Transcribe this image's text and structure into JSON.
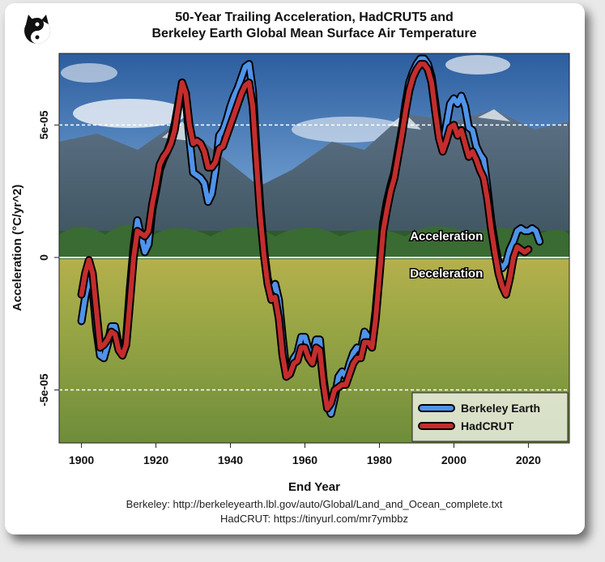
{
  "logo": {
    "icon": "yin-yang-cat-logo"
  },
  "chart_data": {
    "type": "line",
    "title": "50-Year Trailing Acceleration, HadCRUT5 and\nBerkeley Earth Global Mean Surface Air Temperature",
    "xlabel": "End Year",
    "ylabel": "Acceleration (°C/yr^2)",
    "xlim": [
      1894,
      2031
    ],
    "ylim": [
      -7e-05,
      7.7e-05
    ],
    "xticks": [
      1900,
      1920,
      1940,
      1960,
      1980,
      2000,
      2020
    ],
    "yticks": [
      {
        "value": 5e-05,
        "label": "5e-05"
      },
      {
        "value": 0,
        "label": "0"
      },
      {
        "value": -5e-05,
        "label": "-5e-05"
      }
    ],
    "reference_lines": [
      5e-05,
      -5e-05
    ],
    "zero_line": 0,
    "annotations": [
      {
        "text": "Acceleration",
        "x": 1998,
        "y": 6.5e-06
      },
      {
        "text": "Deceleration",
        "x": 1998,
        "y": -7.5e-06
      }
    ],
    "legend_position": "bottom-right",
    "series": [
      {
        "name": "Berkeley Earth",
        "color": "#4f93ea",
        "x": [
          1900,
          1901,
          1902,
          1903,
          1904,
          1905,
          1906,
          1907,
          1908,
          1909,
          1910,
          1911,
          1912,
          1913,
          1914,
          1915,
          1916,
          1917,
          1918,
          1919,
          1920,
          1921,
          1922,
          1923,
          1924,
          1925,
          1926,
          1927,
          1928,
          1929,
          1930,
          1931,
          1932,
          1933,
          1934,
          1935,
          1936,
          1937,
          1938,
          1939,
          1940,
          1941,
          1942,
          1943,
          1944,
          1945,
          1946,
          1947,
          1948,
          1949,
          1950,
          1951,
          1952,
          1953,
          1954,
          1955,
          1956,
          1957,
          1958,
          1959,
          1960,
          1961,
          1962,
          1963,
          1964,
          1965,
          1966,
          1967,
          1968,
          1969,
          1970,
          1971,
          1972,
          1973,
          1974,
          1975,
          1976,
          1977,
          1978,
          1979,
          1980,
          1981,
          1982,
          1983,
          1984,
          1985,
          1986,
          1987,
          1988,
          1989,
          1990,
          1991,
          1992,
          1993,
          1994,
          1995,
          1996,
          1997,
          1998,
          1999,
          2000,
          2001,
          2002,
          2003,
          2004,
          2005,
          2006,
          2007,
          2008,
          2009,
          2010,
          2011,
          2012,
          2013,
          2014,
          2015,
          2016,
          2017,
          2018,
          2019,
          2020,
          2021,
          2022,
          2023
        ],
        "y": [
          -2.4e-05,
          -1.5e-05,
          -8e-06,
          -1.2e-05,
          -2.7e-05,
          -3.7e-05,
          -3.8e-05,
          -3.3e-05,
          -2.6e-05,
          -2.6e-05,
          -3.3e-05,
          -3.6e-05,
          -3.1e-05,
          -1.2e-05,
          4e-06,
          1.4e-05,
          8e-06,
          2e-06,
          5e-06,
          1.8e-05,
          2.5e-05,
          3.3e-05,
          3.7e-05,
          4e-05,
          4.4e-05,
          5e-05,
          5.8e-05,
          6.6e-05,
          6e-05,
          4.5e-05,
          3.2e-05,
          3.1e-05,
          3e-05,
          2.8e-05,
          2.1e-05,
          2.4e-05,
          3.3e-05,
          4.6e-05,
          4.8e-05,
          5.2e-05,
          5.7e-05,
          6.1e-05,
          6.4e-05,
          6.8e-05,
          7.2e-05,
          7.3e-05,
          6.3e-05,
          4e-05,
          1.9e-05,
          3e-06,
          -8e-06,
          -1.3e-05,
          -1e-05,
          -1.6e-05,
          -3e-05,
          -4.3e-05,
          -4.2e-05,
          -3.8e-05,
          -3.6e-05,
          -3e-05,
          -3e-05,
          -3.5e-05,
          -3.7e-05,
          -3.1e-05,
          -3.1e-05,
          -4.6e-05,
          -5.6e-05,
          -5.9e-05,
          -5.3e-05,
          -4.5e-05,
          -4.3e-05,
          -4.5e-05,
          -4e-05,
          -3.6e-05,
          -3.4e-05,
          -3.5e-05,
          -2.8e-05,
          -3e-05,
          -3.2e-05,
          -2e-05,
          -4e-06,
          1.3e-05,
          2.1e-05,
          2.7e-05,
          3.2e-05,
          4e-05,
          4.8e-05,
          5.8e-05,
          6.6e-05,
          7e-05,
          7.3e-05,
          7.5e-05,
          7.5e-05,
          7.3e-05,
          6.8e-05,
          5.8e-05,
          4.7e-05,
          4.2e-05,
          5e-05,
          5.8e-05,
          6e-05,
          5.8e-05,
          6.1e-05,
          5.7e-05,
          4.9e-05,
          4.8e-05,
          4.2e-05,
          3.9e-05,
          3.7e-05,
          2.6e-05,
          1.4e-05,
          5e-06,
          -2e-06,
          -4e-06,
          -2e-06,
          3e-06,
          6e-06,
          1e-05,
          1.1e-05,
          1e-05,
          1e-05,
          1.1e-05,
          1e-05,
          6e-06
        ]
      },
      {
        "name": "HadCRUT",
        "color": "#c42d2d",
        "x": [
          1900,
          1901,
          1902,
          1903,
          1904,
          1905,
          1906,
          1907,
          1908,
          1909,
          1910,
          1911,
          1912,
          1913,
          1914,
          1915,
          1916,
          1917,
          1918,
          1919,
          1920,
          1921,
          1922,
          1923,
          1924,
          1925,
          1926,
          1927,
          1928,
          1929,
          1930,
          1931,
          1932,
          1933,
          1934,
          1935,
          1936,
          1937,
          1938,
          1939,
          1940,
          1941,
          1942,
          1943,
          1944,
          1945,
          1946,
          1947,
          1948,
          1949,
          1950,
          1951,
          1952,
          1953,
          1954,
          1955,
          1956,
          1957,
          1958,
          1959,
          1960,
          1961,
          1962,
          1963,
          1964,
          1965,
          1966,
          1967,
          1968,
          1969,
          1970,
          1971,
          1972,
          1973,
          1974,
          1975,
          1976,
          1977,
          1978,
          1979,
          1980,
          1981,
          1982,
          1983,
          1984,
          1985,
          1986,
          1987,
          1988,
          1989,
          1990,
          1991,
          1992,
          1993,
          1994,
          1995,
          1996,
          1997,
          1998,
          1999,
          2000,
          2001,
          2002,
          2003,
          2004,
          2005,
          2006,
          2007,
          2008,
          2009,
          2010,
          2011,
          2012,
          2013,
          2014,
          2015,
          2016,
          2017,
          2018,
          2019,
          2020
        ],
        "y": [
          -1.4e-05,
          -6e-06,
          -1e-06,
          -6e-06,
          -2e-05,
          -3.4e-05,
          -3.3e-05,
          -3.1e-05,
          -2.8e-05,
          -2.9e-05,
          -3.5e-05,
          -3.7e-05,
          -3.3e-05,
          -1.7e-05,
          0.0,
          1e-05,
          9e-06,
          8e-06,
          1e-05,
          2e-05,
          2.7e-05,
          3.5e-05,
          3.8e-05,
          4e-05,
          4.3e-05,
          4.8e-05,
          5.7e-05,
          6.6e-05,
          6.2e-05,
          5e-05,
          4.3e-05,
          4.4e-05,
          4.3e-05,
          4e-05,
          3.4e-05,
          3.4e-05,
          3.6e-05,
          4.1e-05,
          4.2e-05,
          4.6e-05,
          5e-05,
          5.4e-05,
          5.8e-05,
          6.2e-05,
          6.5e-05,
          6.6e-05,
          5.7e-05,
          3.6e-05,
          1.6e-05,
          1e-06,
          -1e-05,
          -1.6e-05,
          -1.5e-05,
          -2.3e-05,
          -3.7e-05,
          -4.5e-05,
          -4.4e-05,
          -4e-05,
          -3.9e-05,
          -3.4e-05,
          -3.4e-05,
          -3.8e-05,
          -4e-05,
          -3.4e-05,
          -3.5e-05,
          -4.8e-05,
          -5.7e-05,
          -5.5e-05,
          -5e-05,
          -4.9e-05,
          -4.8e-05,
          -4.8e-05,
          -4.4e-05,
          -4e-05,
          -3.8e-05,
          -3.8e-05,
          -3.2e-05,
          -3.2e-05,
          -3.4e-05,
          -2.3e-05,
          -7e-06,
          1e-05,
          1.8e-05,
          2.5e-05,
          3e-05,
          3.8e-05,
          4.6e-05,
          5.5e-05,
          6.3e-05,
          6.8e-05,
          7.1e-05,
          7.3e-05,
          7.3e-05,
          7.1e-05,
          6.6e-05,
          5.5e-05,
          4.5e-05,
          4e-05,
          4.4e-05,
          4.9e-05,
          5e-05,
          4.6e-05,
          4.8e-05,
          4.3e-05,
          3.8e-05,
          4e-05,
          3.7e-05,
          3.3e-05,
          3e-05,
          2.2e-05,
          1.1e-05,
          2e-06,
          -6e-06,
          -1.1e-05,
          -1.4e-05,
          -8e-06,
          0.0,
          4e-06,
          3e-06,
          2e-06,
          3e-06
        ]
      }
    ]
  },
  "sources": {
    "berkeley": "Berkeley: http://berkeleyearth.lbl.gov/auto/Global/Land_and_Ocean_complete.txt",
    "hadcrut": "HadCRUT: https://tinyurl.com/mr7ymbbz"
  }
}
